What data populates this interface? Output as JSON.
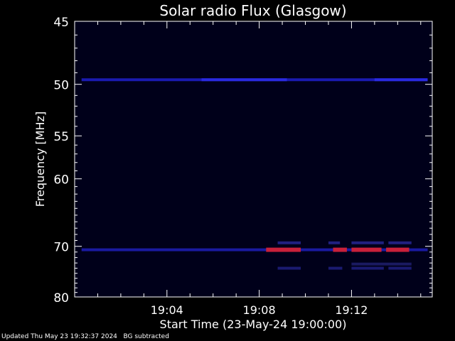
{
  "chart_data": {
    "type": "heatmap",
    "title": "Solar radio Flux (Glasgow)",
    "xlabel": "Start Time (23-May-24 19:00:00)",
    "ylabel": "Frequency [MHz]",
    "x_unit": "minutes after 19:00:00",
    "xlim": [
      0,
      15.5
    ],
    "ylim": [
      80,
      45
    ],
    "y_scale": "reciprocal",
    "x_ticks": [
      {
        "value": 4,
        "label": "19:04"
      },
      {
        "value": 8,
        "label": "19:08"
      },
      {
        "value": 12,
        "label": "19:12"
      }
    ],
    "y_ticks": [
      {
        "value": 45,
        "label": "45"
      },
      {
        "value": 50,
        "label": "50"
      },
      {
        "value": 55,
        "label": "55"
      },
      {
        "value": 60,
        "label": "60"
      },
      {
        "value": 70,
        "label": "70"
      },
      {
        "value": 80,
        "label": "80"
      }
    ],
    "background_color": "#00001a",
    "bands": [
      {
        "freq": 49.6,
        "x_start": 0.3,
        "x_end": 15.3,
        "intensity": "low",
        "color": "#1a1ab0"
      },
      {
        "freq": 49.6,
        "x_start": 5.5,
        "x_end": 9.2,
        "intensity": "medium",
        "color": "#2a2ae0"
      },
      {
        "freq": 49.6,
        "x_start": 13.0,
        "x_end": 15.3,
        "intensity": "medium",
        "color": "#2a2ae0"
      },
      {
        "freq": 70.6,
        "x_start": 0.3,
        "x_end": 15.3,
        "intensity": "low",
        "color": "#1a1aa0"
      },
      {
        "freq": 70.6,
        "x_start": 8.3,
        "x_end": 9.8,
        "intensity": "high",
        "color": "#c8203a"
      },
      {
        "freq": 70.6,
        "x_start": 11.2,
        "x_end": 11.8,
        "intensity": "high",
        "color": "#c8203a"
      },
      {
        "freq": 70.6,
        "x_start": 12.0,
        "x_end": 13.3,
        "intensity": "high",
        "color": "#c8203a"
      },
      {
        "freq": 70.6,
        "x_start": 13.5,
        "x_end": 14.5,
        "intensity": "high",
        "color": "#c8203a"
      },
      {
        "freq": 69.4,
        "x_start": 8.8,
        "x_end": 9.8,
        "intensity": "low",
        "color": "#202080"
      },
      {
        "freq": 69.4,
        "x_start": 11.0,
        "x_end": 11.5,
        "intensity": "low",
        "color": "#202080"
      },
      {
        "freq": 69.4,
        "x_start": 12.0,
        "x_end": 13.4,
        "intensity": "low",
        "color": "#202080"
      },
      {
        "freq": 69.4,
        "x_start": 13.6,
        "x_end": 14.6,
        "intensity": "low",
        "color": "#202080"
      },
      {
        "freq": 74.0,
        "x_start": 8.8,
        "x_end": 9.8,
        "intensity": "low",
        "color": "#1a1a70"
      },
      {
        "freq": 74.0,
        "x_start": 11.0,
        "x_end": 11.6,
        "intensity": "low",
        "color": "#1a1a70"
      },
      {
        "freq": 74.0,
        "x_start": 12.0,
        "x_end": 13.4,
        "intensity": "low",
        "color": "#1a1a70"
      },
      {
        "freq": 74.0,
        "x_start": 13.6,
        "x_end": 14.6,
        "intensity": "low",
        "color": "#1a1a70"
      },
      {
        "freq": 73.2,
        "x_start": 12.0,
        "x_end": 14.6,
        "intensity": "low",
        "color": "#1a1a60"
      }
    ]
  },
  "footer": {
    "updated": "Updated Thu May 23 19:32:37 2024",
    "note": "BG subtracted"
  }
}
